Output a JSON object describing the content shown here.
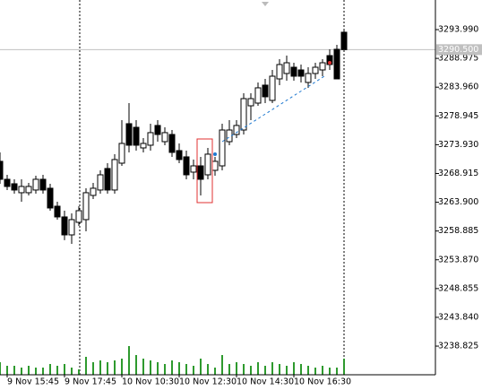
{
  "chart_data": {
    "type": "candlestick",
    "categories": [
      null,
      "9 Nov 15:45",
      null,
      null,
      null,
      null,
      null,
      null,
      null,
      "9 Nov 17:45",
      null,
      null,
      null,
      null,
      null,
      null,
      null,
      "10 Nov 10:30",
      null,
      null,
      null,
      null,
      null,
      null,
      null,
      "10 Nov 12:30",
      null,
      null,
      null,
      null,
      null,
      null,
      null,
      "10 Nov 14:30",
      null,
      null,
      null,
      null,
      null,
      null,
      null,
      "10 Nov 16:30",
      null,
      null,
      null,
      null,
      null,
      null,
      null
    ],
    "open": [
      3271.03,
      3267.9,
      3267.12,
      3265.56,
      3265.56,
      3266.03,
      3267.9,
      3266.34,
      3263.21,
      3261.34,
      3258.21,
      3260.4,
      3260.87,
      3265.09,
      3266.03,
      3269.78,
      3266.03,
      3270.71,
      3277.59,
      3276.96,
      3273.37,
      3273.84,
      3277.28,
      3274.46,
      3275.71,
      3272.9,
      3271.81,
      3269.15,
      3270.24,
      3268.68,
      3269.46,
      3270.24,
      3274.46,
      3275.71,
      3276.49,
      3280.71,
      3281.18,
      3284.31,
      3281.65,
      3285.4,
      3286.34,
      3287.43,
      3286.96,
      3284.78,
      3286.34,
      3286.96,
      3289.46,
      3290.56,
      3293.53
    ],
    "high": [
      3272.59,
      3268.68,
      3267.9,
      3267.9,
      3267.28,
      3268.53,
      3268.68,
      3267.12,
      3263.99,
      3262.43,
      3261.96,
      3263.21,
      3266.34,
      3267.28,
      3269.46,
      3270.71,
      3272.28,
      3278.21,
      3281.18,
      3278.21,
      3275.09,
      3277.59,
      3278.21,
      3276.96,
      3276.49,
      3274.15,
      3272.9,
      3271.34,
      3271.81,
      3273.37,
      3271.81,
      3277.59,
      3278.21,
      3278.21,
      3282.9,
      3282.9,
      3284.78,
      3285.4,
      3286.96,
      3288.84,
      3289.46,
      3288.21,
      3287.9,
      3287.43,
      3288.21,
      3288.84,
      3290.56,
      3291.34,
      3293.84
    ],
    "low": [
      3267.12,
      3266.03,
      3265.4,
      3263.99,
      3265.09,
      3265.4,
      3265.4,
      3262.43,
      3260.87,
      3257.28,
      3256.65,
      3259.78,
      3258.84,
      3264.46,
      3265.4,
      3265.4,
      3265.4,
      3270.24,
      3272.59,
      3272.9,
      3272.59,
      3272.9,
      3274.46,
      3273.84,
      3271.81,
      3270.71,
      3267.9,
      3267.9,
      3265.09,
      3267.9,
      3268.53,
      3269.46,
      3273.84,
      3275.09,
      3275.71,
      3278.21,
      3280.71,
      3281.18,
      3281.18,
      3284.31,
      3285.09,
      3285.09,
      3284.78,
      3283.84,
      3285.4,
      3285.87,
      3286.96,
      3285.4,
      3290.5
    ],
    "close": [
      3267.9,
      3266.65,
      3266.03,
      3266.65,
      3266.65,
      3267.9,
      3266.03,
      3262.9,
      3261.34,
      3258.21,
      3260.87,
      3262.43,
      3265.56,
      3266.34,
      3268.68,
      3266.03,
      3271.34,
      3274.15,
      3273.84,
      3273.84,
      3274.15,
      3276.03,
      3275.71,
      3276.03,
      3272.59,
      3271.34,
      3268.68,
      3270.24,
      3267.9,
      3272.28,
      3271.03,
      3276.49,
      3276.49,
      3277.28,
      3281.96,
      3281.96,
      3283.84,
      3282.28,
      3285.87,
      3287.9,
      3288.21,
      3285.87,
      3285.87,
      3286.34,
      3287.43,
      3288.21,
      3287.9,
      3285.4,
      3290.5
    ],
    "volumes": [
      14,
      10,
      10,
      8,
      10,
      8,
      8,
      12,
      10,
      12,
      8,
      6,
      20,
      14,
      16,
      14,
      16,
      18,
      32,
      22,
      18,
      16,
      14,
      12,
      16,
      14,
      12,
      10,
      18,
      12,
      8,
      22,
      12,
      14,
      12,
      10,
      14,
      10,
      14,
      12,
      10,
      14,
      12,
      10,
      8,
      10,
      8,
      8,
      18
    ],
    "current_price": {
      "value": 3290.5,
      "label": "3290.500"
    },
    "ylim": [
      3233.83,
      3299.15
    ],
    "yticks": [
      {
        "value": 3293.99,
        "label": "3293.990"
      },
      {
        "value": 3288.975,
        "label": "3288.975"
      },
      {
        "value": 3283.96,
        "label": "3283.960"
      },
      {
        "value": 3278.945,
        "label": "3278.945"
      },
      {
        "value": 3273.93,
        "label": "3273.930"
      },
      {
        "value": 3268.915,
        "label": "3268.915"
      },
      {
        "value": 3263.9,
        "label": "3263.900"
      },
      {
        "value": 3258.885,
        "label": "3258.885"
      },
      {
        "value": 3253.87,
        "label": "3253.870"
      },
      {
        "value": 3248.855,
        "label": "3248.855"
      },
      {
        "value": 3243.84,
        "label": "3243.840"
      },
      {
        "value": 3238.825,
        "label": "3238.825"
      }
    ],
    "colors": {
      "up": "#ffffff",
      "down": "#000000",
      "outline": "#000000",
      "volume": "#2e9a2e"
    }
  }
}
